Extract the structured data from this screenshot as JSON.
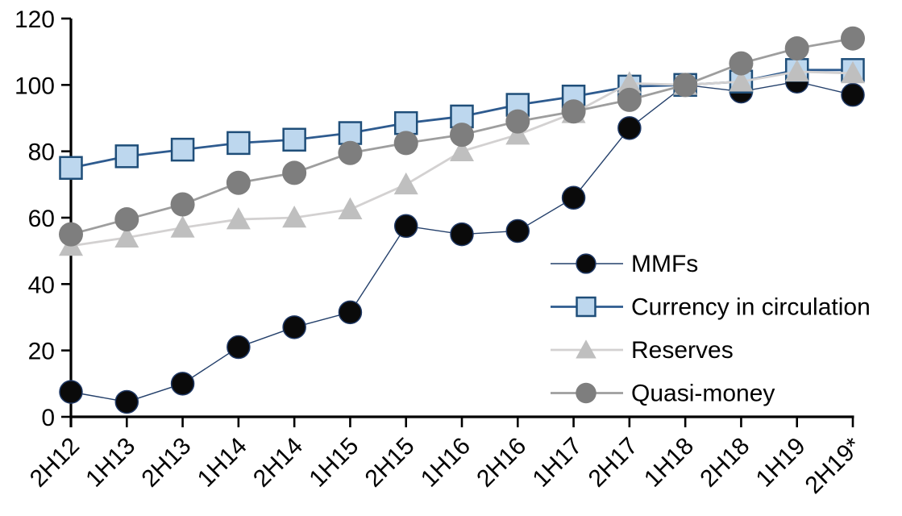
{
  "chart_data": {
    "type": "line",
    "title": "",
    "xlabel": "",
    "ylabel": "",
    "ylim": [
      0,
      120
    ],
    "yticks": [
      0,
      20,
      40,
      60,
      80,
      100,
      120
    ],
    "grid": false,
    "legend_position": "inside-right",
    "categories": [
      "2H12",
      "1H13",
      "2H13",
      "1H14",
      "2H14",
      "1H15",
      "2H15",
      "1H16",
      "2H16",
      "1H17",
      "2H17",
      "1H18",
      "2H18",
      "1H19",
      "2H19*"
    ],
    "series": [
      {
        "name": "MMFs",
        "marker": "circle",
        "values": [
          7.5,
          4.5,
          10,
          21,
          27,
          31.5,
          57.5,
          55,
          56,
          66,
          87,
          100,
          98,
          101,
          97
        ],
        "line_color": "#24406B",
        "line_width": 1.4,
        "fill_color": "#0A0A0A",
        "border_color": "#1F3864",
        "border_width": 1.5,
        "marker_size": 14
      },
      {
        "name": "Currency in circulation",
        "marker": "square",
        "values": [
          75,
          78.5,
          80.5,
          82.5,
          83.5,
          85.5,
          88.5,
          90.5,
          94,
          96.5,
          99.5,
          100,
          101,
          104.5,
          104.5
        ],
        "line_color": "#2E5B8F",
        "line_width": 2.8,
        "fill_color": "#BDD7EE",
        "border_color": "#1F4E79",
        "border_width": 2.5,
        "marker_size": 13.5
      },
      {
        "name": "Reserves",
        "marker": "triangle",
        "values": [
          51.5,
          54,
          57,
          59.5,
          60,
          62.5,
          70,
          80,
          85,
          91.5,
          100.5,
          100,
          101,
          104,
          103.5
        ],
        "line_color": "#D3D1D1",
        "line_width": 2.8,
        "fill_color": "#BFBFBF",
        "border_color": "none",
        "border_width": 0,
        "marker_size": 15
      },
      {
        "name": "Quasi-money",
        "marker": "circle",
        "values": [
          55,
          59.5,
          64,
          70.5,
          73.5,
          79.5,
          82.5,
          85,
          89,
          92,
          95.5,
          100,
          106.5,
          111,
          114
        ],
        "line_color": "#9E9E9E",
        "line_width": 2.8,
        "fill_color": "#7E7E7E",
        "border_color": "none",
        "border_width": 0,
        "marker_size": 15
      }
    ],
    "axis_color": "#000000"
  }
}
